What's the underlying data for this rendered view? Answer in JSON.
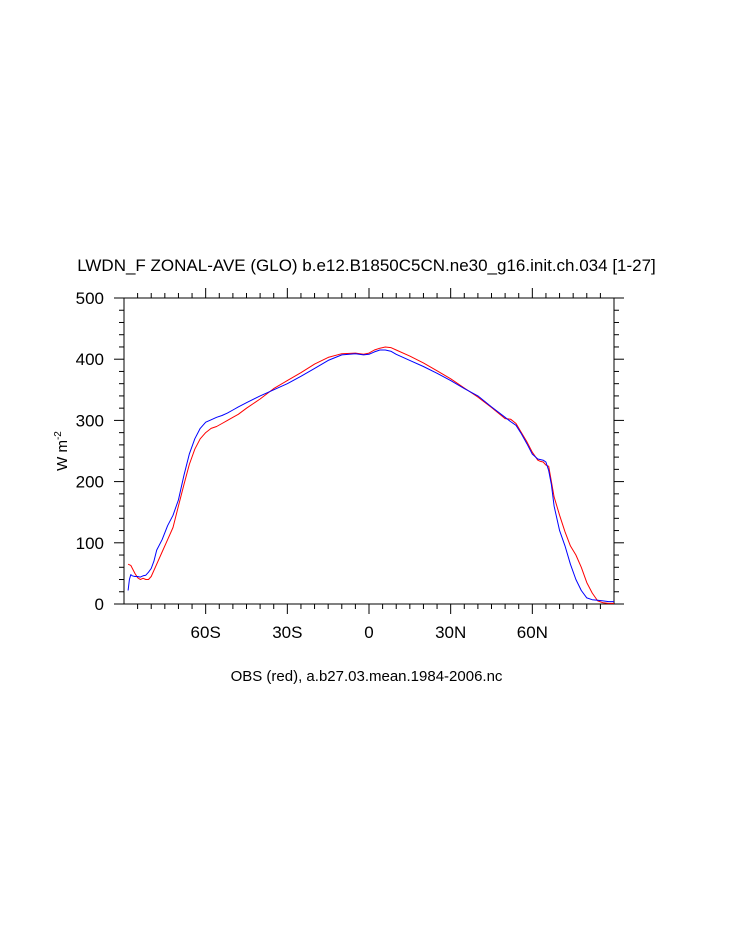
{
  "chart_data": {
    "type": "line",
    "title": "LWDN_F ZONAL-AVE (GLO) b.e12.B1850C5CN.ne30_g16.init.ch.034 [1-27]",
    "subtitle": "OBS (red), a.b27.03.mean.1984-2006.nc",
    "ylabel": {
      "main": "W m",
      "exp": "-2"
    },
    "xlabel": "",
    "xlim": [
      -90,
      90
    ],
    "ylim": [
      0,
      500
    ],
    "xticks": [
      {
        "value": -60,
        "label": "60S"
      },
      {
        "value": -30,
        "label": "30S"
      },
      {
        "value": 0,
        "label": "0"
      },
      {
        "value": 30,
        "label": "30N"
      },
      {
        "value": 60,
        "label": "60N"
      }
    ],
    "yticks": [
      {
        "value": 0,
        "label": "0"
      },
      {
        "value": 100,
        "label": "100"
      },
      {
        "value": 200,
        "label": "200"
      },
      {
        "value": 300,
        "label": "300"
      },
      {
        "value": 400,
        "label": "400"
      },
      {
        "value": 500,
        "label": "500"
      }
    ],
    "grid": false,
    "series": [
      {
        "color": "#ff0000",
        "x": [
          -88.5,
          -87.5,
          -86,
          -85,
          -84,
          -83,
          -82,
          -81,
          -80,
          -78,
          -76,
          -74,
          -72,
          -70,
          -68,
          -66,
          -64,
          -62,
          -60,
          -58,
          -56,
          -54,
          -52,
          -50,
          -48,
          -45,
          -40,
          -35,
          -30,
          -25,
          -20,
          -15,
          -10,
          -5,
          -2,
          0,
          2,
          4,
          6,
          8,
          10,
          15,
          20,
          25,
          30,
          35,
          40,
          45,
          50,
          52,
          54,
          56,
          58,
          60,
          62,
          63,
          64,
          65,
          66,
          67,
          68,
          70,
          72,
          74,
          76,
          78,
          80,
          82,
          84,
          86,
          88,
          90
        ],
        "y": [
          65,
          63,
          50,
          43,
          40,
          42,
          40,
          40,
          45,
          65,
          85,
          105,
          125,
          160,
          195,
          228,
          253,
          270,
          280,
          287,
          290,
          295,
          300,
          305,
          310,
          320,
          335,
          352,
          365,
          378,
          392,
          403,
          409,
          410,
          408,
          410,
          415,
          418,
          420,
          419,
          415,
          405,
          394,
          381,
          368,
          353,
          338,
          321,
          303,
          302,
          295,
          280,
          265,
          248,
          235,
          233,
          232,
          227,
          225,
          200,
          175,
          145,
          118,
          95,
          80,
          60,
          35,
          18,
          5,
          2,
          1,
          1
        ]
      },
      {
        "color": "#0000ff",
        "x": [
          -88.5,
          -88,
          -87.5,
          -87,
          -86,
          -85,
          -84,
          -83,
          -82,
          -81,
          -80,
          -79,
          -78,
          -76,
          -74,
          -72,
          -70,
          -68,
          -66,
          -64,
          -62,
          -60,
          -58,
          -56,
          -54,
          -52,
          -50,
          -48,
          -45,
          -40,
          -35,
          -30,
          -25,
          -20,
          -15,
          -10,
          -5,
          -2,
          0,
          2,
          4,
          6,
          8,
          10,
          15,
          20,
          25,
          30,
          35,
          40,
          45,
          50,
          52,
          54,
          56,
          58,
          60,
          62,
          64,
          65,
          66,
          67,
          68,
          70,
          72,
          74,
          76,
          78,
          80,
          82,
          84,
          86,
          88,
          90
        ],
        "y": [
          22,
          40,
          48,
          46,
          45,
          45,
          44,
          46,
          47,
          52,
          58,
          70,
          88,
          105,
          128,
          145,
          170,
          210,
          245,
          270,
          287,
          297,
          301,
          305,
          308,
          312,
          317,
          322,
          329,
          340,
          350,
          360,
          372,
          385,
          398,
          407,
          409,
          407,
          408,
          412,
          415,
          415,
          413,
          408,
          398,
          388,
          377,
          365,
          352,
          340,
          322,
          305,
          298,
          292,
          278,
          262,
          245,
          237,
          235,
          232,
          218,
          195,
          160,
          120,
          95,
          65,
          40,
          22,
          10,
          7,
          6,
          5,
          4,
          4
        ]
      }
    ]
  }
}
